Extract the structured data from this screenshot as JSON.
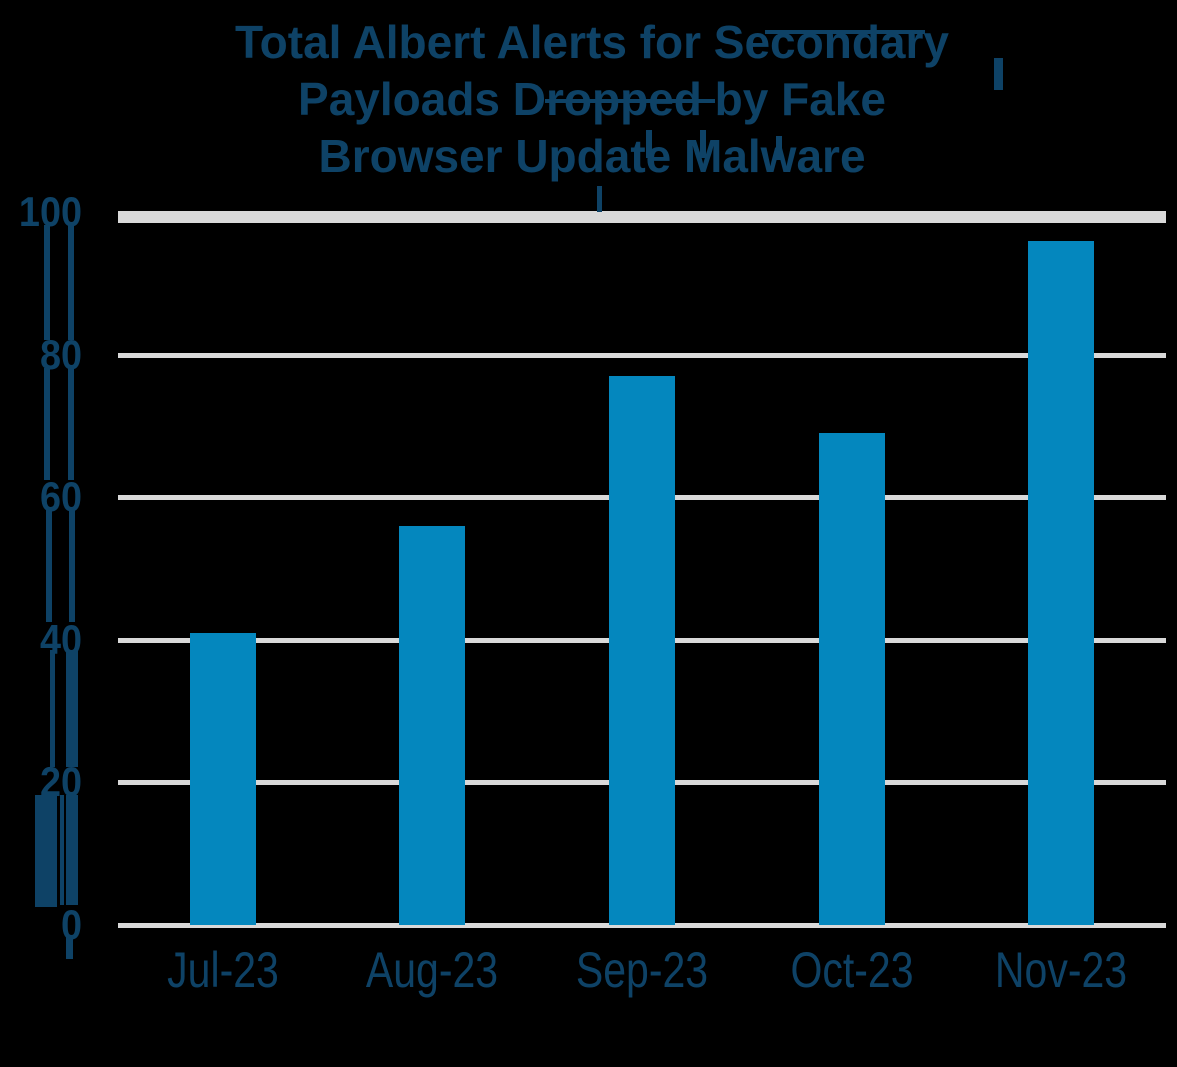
{
  "chart_data": {
    "type": "bar",
    "title": "Total Albert Alerts for Secondary Payloads Dropped by Fake Browser Update Malware",
    "title_lines": [
      "Total Albert Alerts for Secondary",
      "Payloads Dropped by Fake",
      "Browser Update Malware"
    ],
    "categories": [
      "Jul-23",
      "Aug-23",
      "Sep-23",
      "Oct-23",
      "Nov-23"
    ],
    "values": [
      41,
      56,
      77,
      69,
      96
    ],
    "series": [
      {
        "name": "Total Albert Alerts",
        "values": [
          41,
          56,
          77,
          69,
          96
        ]
      }
    ],
    "xlabel": "",
    "ylabel": "",
    "ylim": [
      0,
      100
    ],
    "yticks": [
      100,
      80,
      60,
      40,
      20,
      0
    ],
    "grid": "horizontal",
    "legend": "none",
    "colors": {
      "bar": "#0487BE",
      "text": "#0E4266",
      "gridline": "#D9D9D9",
      "background": "#000000"
    }
  }
}
